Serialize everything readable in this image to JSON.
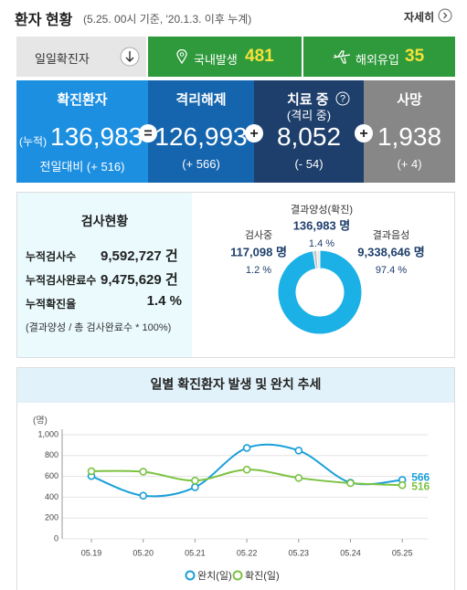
{
  "header": {
    "title": "환자 현황",
    "subtitle": "(5.25. 00시 기준, '20.1.3. 이후 누계)",
    "more": "자세히"
  },
  "daily": {
    "label": "일일확진자",
    "domestic_label": "국내발생",
    "domestic": "481",
    "overseas_label": "해외유입",
    "overseas": "35"
  },
  "summary": [
    {
      "title": "확진환자",
      "prefix": "(누적)",
      "value": "136,983",
      "change": "전일대비 (+ 516)"
    },
    {
      "title": "격리해제",
      "value": "126,993",
      "change": "(+ 566)"
    },
    {
      "title": "치료 중",
      "subtitle": "(격리 중)",
      "value": "8,052",
      "change": "(- 54)"
    },
    {
      "title": "사망",
      "value": "1,938",
      "change": "(+ 4)"
    }
  ],
  "operators": [
    "=",
    "+",
    "+"
  ],
  "tests": {
    "title": "검사현황",
    "rows": [
      [
        "누적검사수",
        "9,592,727 건"
      ],
      [
        "누적검사완료수",
        "9,475,629 건"
      ],
      [
        "누적확진율",
        "1.4 %"
      ]
    ],
    "note": "(결과양성 / 총 검사완료수 * 100%)"
  },
  "chart_data": [
    {
      "type": "pie",
      "categories": [
        "결과음성",
        "결과양성(확진)",
        "검사중"
      ],
      "values": [
        97.4,
        1.4,
        1.2
      ],
      "value_labels": [
        "97.4 %",
        "1.4 %",
        "1.2 %"
      ],
      "count_labels": [
        "9,338,646 명",
        "136,983 명",
        "117,098 명"
      ],
      "colors": [
        "#1cb1e6",
        "#c4c4c4",
        "#e6e6e6"
      ]
    },
    {
      "type": "line",
      "title": "일별 확진환자 발생 및 완치 추세",
      "y_label": "(명)",
      "categories": [
        "05.19",
        "05.20",
        "05.21",
        "05.22",
        "05.23",
        "05.24",
        "05.25"
      ],
      "series": [
        {
          "name": "완치(일)",
          "color": "#1a9fd8",
          "values": [
            603,
            415,
            496,
            873,
            848,
            540,
            566
          ]
        },
        {
          "name": "확진(일)",
          "color": "#7cc242",
          "values": [
            650,
            645,
            560,
            665,
            585,
            535,
            516
          ]
        }
      ],
      "ylim": [
        0,
        1000
      ],
      "yticks": [
        0,
        200,
        400,
        600,
        800,
        {
          "value": 1000,
          "label": "1,000"
        }
      ],
      "grid": true
    }
  ]
}
